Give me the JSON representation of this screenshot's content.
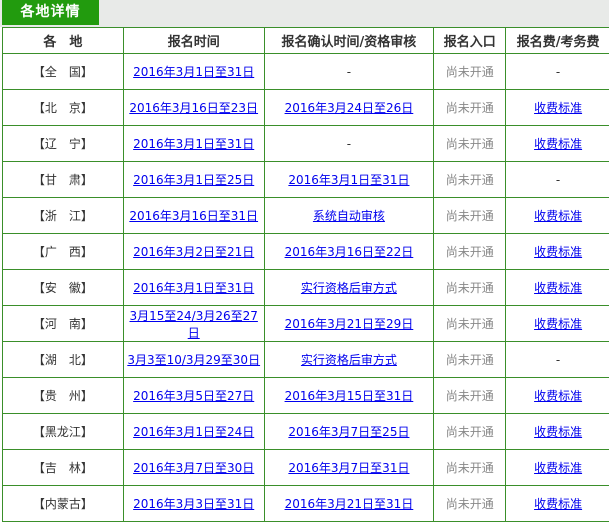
{
  "tab": {
    "title": "各地详情"
  },
  "table": {
    "headers": [
      "各　地",
      "报名时间",
      "报名确认时间/资格审核",
      "报名入口",
      "报名费/考务费"
    ],
    "rows": [
      [
        "【全　国】",
        "2016年3月1日至31日",
        "-",
        "尚未开通",
        "-"
      ],
      [
        "【北　京】",
        "2016年3月16日至23日",
        "2016年3月24日至26日",
        "尚未开通",
        "收费标准"
      ],
      [
        "【辽　宁】",
        "2016年3月1日至31日",
        "-",
        "尚未开通",
        "收费标准"
      ],
      [
        "【甘　肃】",
        "2016年3月1日至25日",
        "2016年3月1日至31日",
        "尚未开通",
        "-"
      ],
      [
        "【浙　江】",
        "2016年3月16日至31日",
        "系统自动审核",
        "尚未开通",
        "收费标准"
      ],
      [
        "【广　西】",
        "2016年3月2日至21日",
        "2016年3月16日至22日",
        "尚未开通",
        "收费标准"
      ],
      [
        "【安　徽】",
        "2016年3月1日至31日",
        "实行资格后审方式",
        "尚未开通",
        "收费标准"
      ],
      [
        "【河　南】",
        "3月15至24/3月26至27日",
        "2016年3月21日至29日",
        "尚未开通",
        "收费标准"
      ],
      [
        "【湖　北】",
        "3月3至10/3月29至30日",
        "实行资格后审方式",
        "尚未开通",
        "-"
      ],
      [
        "【贵　州】",
        "2016年3月5日至27日",
        "2016年3月15日至31日",
        "尚未开通",
        "收费标准"
      ],
      [
        "【黑龙江】",
        "2016年3月1日至24日",
        "2016年3月7日至25日",
        "尚未开通",
        "收费标准"
      ],
      [
        "【吉　林】",
        "2016年3月7日至30日",
        "2016年3月7日至31日",
        "尚未开通",
        "收费标准"
      ],
      [
        "【内蒙古】",
        "2016年3月3日至31日",
        "2016年3月21日至31日",
        "尚未开通",
        "收费标准"
      ]
    ]
  }
}
